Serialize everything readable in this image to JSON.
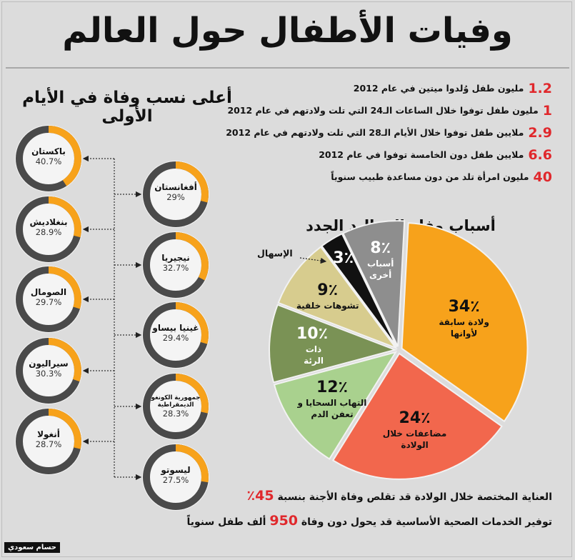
{
  "title": "وفيات الأطفال حول العالم",
  "stats": [
    {
      "num": "1.2",
      "text": "مليون طفل وُلدوا ميتين في عام 2012"
    },
    {
      "num": "1",
      "text": "مليون طفل توفوا خلال الساعات الـ24 التي تلت ولادتهم في عام 2012"
    },
    {
      "num": "2.9",
      "text": "ملايين طفل توفوا خلال الأيام الـ28 التي تلت ولادتهم في عام 2012"
    },
    {
      "num": "6.6",
      "text": "ملايين طفل دون الخامسة توفوا في عام 2012"
    },
    {
      "num": "40",
      "text": "مليون امرأة تلد من دون مساعدة طبيب سنوياً"
    }
  ],
  "left_title": "أعلى نسب وفاة في الأيام الأولى",
  "pie_title": "أسباب وفاة المواليد الجدد",
  "ishal_label": "الإسهال",
  "colors": {
    "accent": "#f7a21b",
    "ring": "#4a4a4a",
    "red": "#e0282c"
  },
  "chart_data": [
    {
      "type": "pie",
      "title": "أسباب وفاة المواليد الجدد",
      "slices": [
        {
          "label": "ولادة سابقة لأوانها",
          "value": 34,
          "pct": "34٪",
          "color": "#f7a21b"
        },
        {
          "label": "مضاعفات خلال الولادة",
          "value": 24,
          "pct": "24٪",
          "color": "#f2674d"
        },
        {
          "label": "التهاب السحايا و تعفن الدم",
          "value": 12,
          "pct": "12٪",
          "color": "#a9d18e"
        },
        {
          "label": "ذات الرئة",
          "value": 10,
          "pct": "10٪",
          "color": "#7a9255"
        },
        {
          "label": "تشوهات خلقية",
          "value": 9,
          "pct": "9٪",
          "color": "#d7cc8e"
        },
        {
          "label": "الإسهال",
          "value": 3,
          "pct": "3٪",
          "color": "#111111"
        },
        {
          "label": "أسباب أخرى",
          "value": 8,
          "pct": "8٪",
          "color": "#8e8e8e"
        }
      ]
    },
    {
      "type": "bar",
      "title": "أعلى نسب وفاة في الأيام الأولى",
      "countries": [
        {
          "name": "باكستان",
          "value": 40.7,
          "display": "40.7%"
        },
        {
          "name": "أفغانستان",
          "value": 29,
          "display": "29%"
        },
        {
          "name": "بنغلاديش",
          "value": 28.9,
          "display": "28.9%"
        },
        {
          "name": "نيجيريا",
          "value": 32.7,
          "display": "32.7%"
        },
        {
          "name": "الصومال",
          "value": 29.7,
          "display": "29.7%"
        },
        {
          "name": "غينيا بيساو",
          "value": 29.4,
          "display": "29.4%"
        },
        {
          "name": "سيراليون",
          "value": 30.3,
          "display": "30.3%"
        },
        {
          "name": "جمهورية الكونغو الديمقراطية",
          "value": 28.3,
          "display": "28.3%"
        },
        {
          "name": "أنغولا",
          "value": 28.7,
          "display": "28.7%"
        },
        {
          "name": "ليسوتو",
          "value": 27.5,
          "display": "27.5%"
        }
      ]
    }
  ],
  "bottom": {
    "line1_text": "العناية المختصة خلال الولادة قد تقلص وفاة الأجنة بنسبة",
    "line1_red": "45٪",
    "line2_prefix": "توفير الخدمات الصحية الأساسية قد يحول دون وفاة",
    "line2_red": "950",
    "line2_suffix": "ألف طفل سنوياً"
  },
  "credit": "حسام سعودي"
}
